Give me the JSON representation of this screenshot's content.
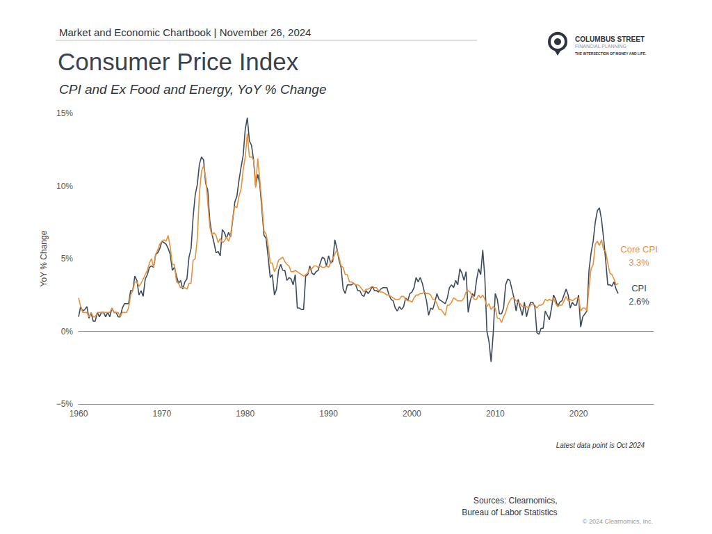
{
  "chart_data": {
    "type": "line",
    "chartbook": "Market and Economic Chartbook | November 26, 2024",
    "title": "Consumer Price Index",
    "subtitle": "CPI and Ex Food and Energy, YoY % Change",
    "y_label": "YoY % Change",
    "note": "Latest data point is Oct 2024",
    "sources": [
      "Sources: Clearnomics,",
      "Bureau of Labor Statistics"
    ],
    "copyright": "© 2024 Clearnomics, Inc.",
    "brand": {
      "name": "COLUMBUS STREET",
      "line2": "FINANCIAL PLANNING",
      "tagline": "THE INTERSECTION OF MONEY AND LIFE."
    },
    "xlim": [
      1960,
      2029
    ],
    "xticks": [
      1960,
      1970,
      1980,
      1990,
      2000,
      2010,
      2020
    ],
    "ylim": [
      -5,
      15
    ],
    "yticks": [
      {
        "value": -5,
        "label": "−5%"
      },
      {
        "value": 0,
        "label": "0%"
      },
      {
        "value": 5,
        "label": "5%"
      },
      {
        "value": 10,
        "label": "10%"
      },
      {
        "value": 15,
        "label": "15%"
      }
    ],
    "grid": false,
    "x": [
      1960,
      1960.25,
      1960.5,
      1960.75,
      1961,
      1961.25,
      1961.5,
      1961.75,
      1962,
      1962.25,
      1962.5,
      1962.75,
      1963,
      1963.25,
      1963.5,
      1963.75,
      1964,
      1964.25,
      1964.5,
      1964.75,
      1965,
      1965.25,
      1965.5,
      1965.75,
      1966,
      1966.25,
      1966.5,
      1966.75,
      1967,
      1967.25,
      1967.5,
      1967.75,
      1968,
      1968.25,
      1968.5,
      1968.75,
      1969,
      1969.25,
      1969.5,
      1969.75,
      1970,
      1970.25,
      1970.5,
      1970.75,
      1971,
      1971.25,
      1971.5,
      1971.75,
      1972,
      1972.25,
      1972.5,
      1972.75,
      1973,
      1973.25,
      1973.5,
      1973.75,
      1974,
      1974.25,
      1974.5,
      1974.75,
      1975,
      1975.25,
      1975.5,
      1975.75,
      1976,
      1976.25,
      1976.5,
      1976.75,
      1977,
      1977.25,
      1977.5,
      1977.75,
      1978,
      1978.25,
      1978.5,
      1978.75,
      1979,
      1979.25,
      1979.5,
      1979.75,
      1980,
      1980.25,
      1980.5,
      1980.75,
      1981,
      1981.25,
      1981.5,
      1981.75,
      1982,
      1982.25,
      1982.5,
      1982.75,
      1983,
      1983.25,
      1983.5,
      1983.75,
      1984,
      1984.25,
      1984.5,
      1984.75,
      1985,
      1985.25,
      1985.5,
      1985.75,
      1986,
      1986.25,
      1986.5,
      1986.75,
      1987,
      1987.25,
      1987.5,
      1987.75,
      1988,
      1988.25,
      1988.5,
      1988.75,
      1989,
      1989.25,
      1989.5,
      1989.75,
      1990,
      1990.25,
      1990.5,
      1990.75,
      1991,
      1991.25,
      1991.5,
      1991.75,
      1992,
      1992.25,
      1992.5,
      1992.75,
      1993,
      1993.25,
      1993.5,
      1993.75,
      1994,
      1994.25,
      1994.5,
      1994.75,
      1995,
      1995.25,
      1995.5,
      1995.75,
      1996,
      1996.25,
      1996.5,
      1996.75,
      1997,
      1997.25,
      1997.5,
      1997.75,
      1998,
      1998.25,
      1998.5,
      1998.75,
      1999,
      1999.25,
      1999.5,
      1999.75,
      2000,
      2000.25,
      2000.5,
      2000.75,
      2001,
      2001.25,
      2001.5,
      2001.75,
      2002,
      2002.25,
      2002.5,
      2002.75,
      2003,
      2003.25,
      2003.5,
      2003.75,
      2004,
      2004.25,
      2004.5,
      2004.75,
      2005,
      2005.25,
      2005.5,
      2005.75,
      2006,
      2006.25,
      2006.5,
      2006.75,
      2007,
      2007.25,
      2007.5,
      2007.75,
      2008,
      2008.25,
      2008.5,
      2008.75,
      2009,
      2009.25,
      2009.5,
      2009.75,
      2010,
      2010.25,
      2010.5,
      2010.75,
      2011,
      2011.25,
      2011.5,
      2011.75,
      2012,
      2012.25,
      2012.5,
      2012.75,
      2013,
      2013.25,
      2013.5,
      2013.75,
      2014,
      2014.25,
      2014.5,
      2014.75,
      2015,
      2015.25,
      2015.5,
      2015.75,
      2016,
      2016.25,
      2016.5,
      2016.75,
      2017,
      2017.25,
      2017.5,
      2017.75,
      2018,
      2018.25,
      2018.5,
      2018.75,
      2019,
      2019.25,
      2019.5,
      2019.75,
      2020,
      2020.25,
      2020.5,
      2020.75,
      2021,
      2021.25,
      2021.5,
      2021.75,
      2022,
      2022.25,
      2022.5,
      2022.75,
      2023,
      2023.25,
      2023.5,
      2023.75,
      2024,
      2024.25,
      2024.5,
      2024.75
    ],
    "series": [
      {
        "name": "CPI",
        "color": "#3d4a5c",
        "end_label": "2.6%",
        "values": [
          1.0,
          1.7,
          1.4,
          1.5,
          1.7,
          0.9,
          1.3,
          0.7,
          0.7,
          1.3,
          1.0,
          1.3,
          1.3,
          1.0,
          1.3,
          1.0,
          1.6,
          1.3,
          1.3,
          1.0,
          1.0,
          1.6,
          1.9,
          1.9,
          1.9,
          2.8,
          2.8,
          3.8,
          3.5,
          2.5,
          2.8,
          2.4,
          3.6,
          3.9,
          4.4,
          4.5,
          4.4,
          5.3,
          5.4,
          5.7,
          6.2,
          6.1,
          6.0,
          5.7,
          5.3,
          4.2,
          4.4,
          3.8,
          3.3,
          3.5,
          2.9,
          3.4,
          3.6,
          5.1,
          5.7,
          7.9,
          9.4,
          10.1,
          11.5,
          12.0,
          11.8,
          10.2,
          9.7,
          7.6,
          6.7,
          6.1,
          5.4,
          5.5,
          5.2,
          7.0,
          6.8,
          6.4,
          6.8,
          6.5,
          7.7,
          8.9,
          9.3,
          10.4,
          11.3,
          12.1,
          13.9,
          14.7,
          13.1,
          12.8,
          11.8,
          10.0,
          10.8,
          10.1,
          8.4,
          6.6,
          6.4,
          5.1,
          3.7,
          3.9,
          2.5,
          2.9,
          4.2,
          4.6,
          4.2,
          4.2,
          3.5,
          3.7,
          3.6,
          3.2,
          3.9,
          1.6,
          1.6,
          1.5,
          1.5,
          3.8,
          3.9,
          4.5,
          4.0,
          3.9,
          4.1,
          4.2,
          4.7,
          5.1,
          5.0,
          4.5,
          5.2,
          4.7,
          4.8,
          6.3,
          5.7,
          4.9,
          4.4,
          2.9,
          2.6,
          3.2,
          3.2,
          3.2,
          3.3,
          3.2,
          2.8,
          2.8,
          2.5,
          2.4,
          2.8,
          2.6,
          2.8,
          3.1,
          2.8,
          2.8,
          2.7,
          2.9,
          3.0,
          3.0,
          3.0,
          2.5,
          2.2,
          2.1,
          1.6,
          1.4,
          1.7,
          1.5,
          1.7,
          2.3,
          2.1,
          2.6,
          2.7,
          3.0,
          3.7,
          3.4,
          3.7,
          3.3,
          2.7,
          2.1,
          1.1,
          1.6,
          1.5,
          2.0,
          2.6,
          2.2,
          2.1,
          2.0,
          1.9,
          2.3,
          3.0,
          3.2,
          3.0,
          3.5,
          3.2,
          4.3,
          4.0,
          3.5,
          4.1,
          1.3,
          2.1,
          2.6,
          2.4,
          3.5,
          4.3,
          3.9,
          5.6,
          3.7,
          0.0,
          -0.7,
          -2.1,
          -0.2,
          2.6,
          2.2,
          1.2,
          1.2,
          1.6,
          3.2,
          3.6,
          3.5,
          2.9,
          2.3,
          1.4,
          2.2,
          1.6,
          1.1,
          2.0,
          1.0,
          1.6,
          2.0,
          2.0,
          1.7,
          -0.1,
          -0.2,
          0.2,
          0.2,
          1.4,
          1.1,
          0.8,
          1.6,
          2.5,
          2.2,
          1.7,
          2.0,
          2.1,
          2.5,
          2.9,
          2.5,
          1.6,
          2.0,
          1.8,
          1.8,
          2.5,
          0.3,
          1.0,
          1.2,
          1.4,
          4.2,
          5.4,
          6.2,
          7.5,
          8.3,
          8.5,
          7.7,
          6.4,
          4.9,
          3.2,
          3.2,
          3.1,
          3.4,
          2.9,
          2.6
        ]
      },
      {
        "name": "Core CPI",
        "color": "#e8913a",
        "end_label": "3.3%",
        "values": [
          2.3,
          1.7,
          1.3,
          1.3,
          1.3,
          1.0,
          1.3,
          1.0,
          1.0,
          1.3,
          1.3,
          1.3,
          1.3,
          1.3,
          1.3,
          1.3,
          1.6,
          1.3,
          1.3,
          1.3,
          1.0,
          1.3,
          1.3,
          1.3,
          1.6,
          2.5,
          2.8,
          3.4,
          3.4,
          3.1,
          3.3,
          3.6,
          3.9,
          4.2,
          4.7,
          5.0,
          4.4,
          5.3,
          5.6,
          6.0,
          6.2,
          6.3,
          6.2,
          6.6,
          5.8,
          4.6,
          4.6,
          3.4,
          3.3,
          3.0,
          3.0,
          3.0,
          2.9,
          3.3,
          3.3,
          4.9,
          5.0,
          6.4,
          9.5,
          11.0,
          11.4,
          10.6,
          8.9,
          7.2,
          6.6,
          6.8,
          6.6,
          6.1,
          6.4,
          6.1,
          6.2,
          6.5,
          6.2,
          6.6,
          7.8,
          8.6,
          8.5,
          9.3,
          9.8,
          11.1,
          12.0,
          13.6,
          12.0,
          12.0,
          11.8,
          9.9,
          11.9,
          10.4,
          8.8,
          6.9,
          6.7,
          5.9,
          4.7,
          4.7,
          4.1,
          4.4,
          4.9,
          5.0,
          5.1,
          4.8,
          4.6,
          4.5,
          4.1,
          4.1,
          4.2,
          4.1,
          4.0,
          3.9,
          3.8,
          3.9,
          4.0,
          4.3,
          4.3,
          4.5,
          4.5,
          4.4,
          4.5,
          4.4,
          4.4,
          4.5,
          4.4,
          4.7,
          5.0,
          5.3,
          5.6,
          5.1,
          4.5,
          4.4,
          3.9,
          3.9,
          3.4,
          3.4,
          3.3,
          3.2,
          3.2,
          3.1,
          2.9,
          2.7,
          2.9,
          2.9,
          3.0,
          3.1,
          3.0,
          3.0,
          2.8,
          2.7,
          2.7,
          2.6,
          2.5,
          2.5,
          2.4,
          2.3,
          2.2,
          2.2,
          2.2,
          2.4,
          2.4,
          2.2,
          2.1,
          2.1,
          2.0,
          2.3,
          2.5,
          2.5,
          2.6,
          2.6,
          2.7,
          2.6,
          2.6,
          2.5,
          2.2,
          2.2,
          1.9,
          1.5,
          1.5,
          1.3,
          1.1,
          1.8,
          1.8,
          2.0,
          2.3,
          2.2,
          2.1,
          2.1,
          2.1,
          2.3,
          2.7,
          2.8,
          2.7,
          2.4,
          2.2,
          2.2,
          2.5,
          2.3,
          2.5,
          2.2,
          1.7,
          1.9,
          1.5,
          1.7,
          1.6,
          0.9,
          0.9,
          0.6,
          1.0,
          1.3,
          1.8,
          2.1,
          2.3,
          2.3,
          2.1,
          2.0,
          1.9,
          1.7,
          1.7,
          1.7,
          1.6,
          1.8,
          1.9,
          1.8,
          1.6,
          1.8,
          1.8,
          1.9,
          2.2,
          2.1,
          2.2,
          2.1,
          2.3,
          1.9,
          1.7,
          1.8,
          1.8,
          2.1,
          2.4,
          2.1,
          2.2,
          2.1,
          2.2,
          2.3,
          2.3,
          1.4,
          1.6,
          1.6,
          1.4,
          3.0,
          4.3,
          4.6,
          6.0,
          6.2,
          5.9,
          6.3,
          5.6,
          5.5,
          4.7,
          4.0,
          3.9,
          3.6,
          3.2,
          3.3
        ]
      }
    ]
  }
}
